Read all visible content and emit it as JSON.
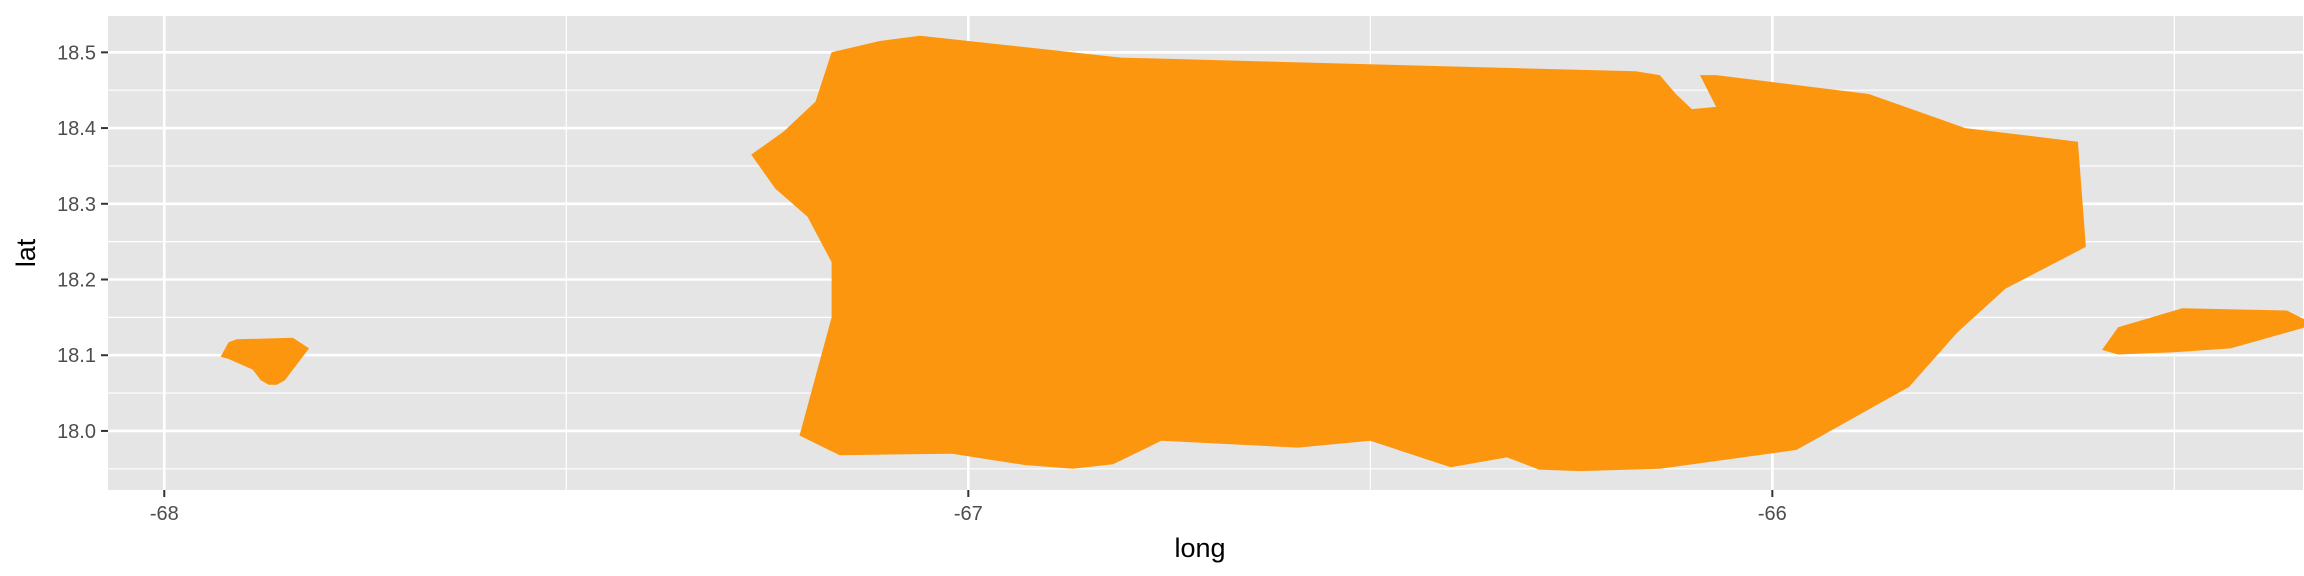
{
  "chart_data": {
    "type": "map",
    "xlabel": "long",
    "ylabel": "lat",
    "xlim": [
      -68.07,
      -65.34
    ],
    "ylim": [
      17.922,
      18.548
    ],
    "x_ticks": [
      {
        "value": -68,
        "label": "-68"
      },
      {
        "value": -67,
        "label": "-67"
      },
      {
        "value": -66,
        "label": "-66"
      }
    ],
    "x_minor": [
      -67.5,
      -66.5,
      -65.5
    ],
    "y_ticks": [
      {
        "value": 18.0,
        "label": "18.0"
      },
      {
        "value": 18.1,
        "label": "18.1"
      },
      {
        "value": 18.2,
        "label": "18.2"
      },
      {
        "value": 18.3,
        "label": "18.3"
      },
      {
        "value": 18.4,
        "label": "18.4"
      },
      {
        "value": 18.5,
        "label": "18.5"
      }
    ],
    "y_minor": [
      17.95,
      18.05,
      18.15,
      18.25,
      18.35,
      18.45
    ],
    "grid": true,
    "colors": {
      "panel": "#e5e5e5",
      "grid": "#ffffff",
      "fill": "#fd960f",
      "tick_text": "#4d4d4d",
      "axis_title": "#000000"
    },
    "polygons": [
      {
        "name": "main-island",
        "points": [
          [
            -67.27,
            18.365
          ],
          [
            -67.23,
            18.395
          ],
          [
            -67.19,
            18.435
          ],
          [
            -67.17,
            18.5
          ],
          [
            -67.11,
            18.515
          ],
          [
            -67.06,
            18.522
          ],
          [
            -66.81,
            18.493
          ],
          [
            -66.17,
            18.475
          ],
          [
            -66.14,
            18.47
          ],
          [
            -66.12,
            18.445
          ],
          [
            -66.1,
            18.425
          ],
          [
            -66.07,
            18.428
          ],
          [
            -66.09,
            18.47
          ],
          [
            -66.07,
            18.47
          ],
          [
            -65.88,
            18.445
          ],
          [
            -65.76,
            18.4
          ],
          [
            -65.62,
            18.382
          ],
          [
            -65.61,
            18.243
          ],
          [
            -65.71,
            18.188
          ],
          [
            -65.77,
            18.13
          ],
          [
            -65.83,
            18.058
          ],
          [
            -65.97,
            17.975
          ],
          [
            -66.14,
            17.95
          ],
          [
            -66.24,
            17.947
          ],
          [
            -66.29,
            17.949
          ],
          [
            -66.33,
            17.965
          ],
          [
            -66.4,
            17.952
          ],
          [
            -66.5,
            17.987
          ],
          [
            -66.59,
            17.978
          ],
          [
            -66.76,
            17.987
          ],
          [
            -66.82,
            17.956
          ],
          [
            -66.87,
            17.95
          ],
          [
            -66.93,
            17.955
          ],
          [
            -67.02,
            17.97
          ],
          [
            -67.16,
            17.968
          ],
          [
            -67.21,
            17.994
          ],
          [
            -67.17,
            18.15
          ],
          [
            -67.17,
            18.223
          ],
          [
            -67.2,
            18.283
          ],
          [
            -67.24,
            18.32
          ]
        ]
      },
      {
        "name": "mona-island",
        "points": [
          [
            -67.93,
            18.098
          ],
          [
            -67.92,
            18.117
          ],
          [
            -67.91,
            18.121
          ],
          [
            -67.84,
            18.123
          ],
          [
            -67.83,
            18.116
          ],
          [
            -67.82,
            18.109
          ],
          [
            -67.85,
            18.067
          ],
          [
            -67.86,
            18.061
          ],
          [
            -67.87,
            18.061
          ],
          [
            -67.88,
            18.067
          ],
          [
            -67.89,
            18.081
          ],
          [
            -67.92,
            18.095
          ]
        ]
      },
      {
        "name": "vieques-island",
        "points": [
          [
            -65.57,
            18.137
          ],
          [
            -65.49,
            18.162
          ],
          [
            -65.36,
            18.159
          ],
          [
            -65.33,
            18.143
          ],
          [
            -65.34,
            18.136
          ],
          [
            -65.43,
            18.109
          ],
          [
            -65.5,
            18.104
          ],
          [
            -65.57,
            18.101
          ],
          [
            -65.59,
            18.107
          ]
        ]
      }
    ]
  }
}
